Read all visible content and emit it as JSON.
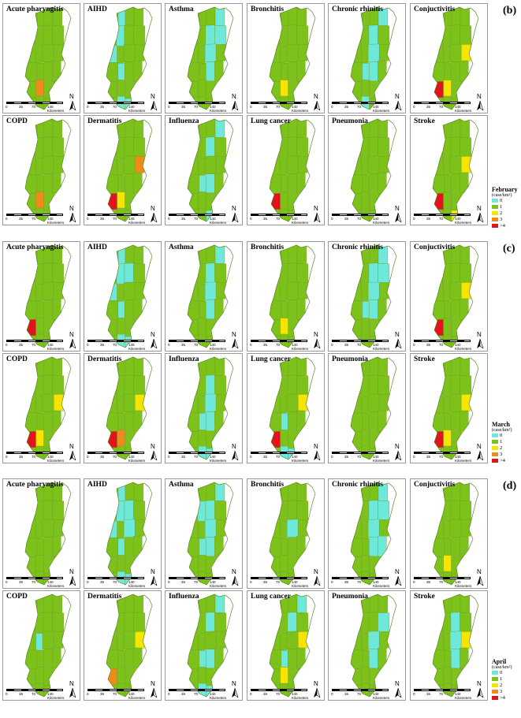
{
  "sections": [
    {
      "label": "(b)",
      "month": "February",
      "panels": [
        {
          "title": "Acute pharyngitis",
          "counties": {
            "17": 3
          }
        },
        {
          "title": "AIHD",
          "counties": {
            "1": 0,
            "5": 0,
            "8": 0,
            "13": 0,
            "19": 0,
            "21": 0,
            "22": 0,
            "24": 0
          }
        },
        {
          "title": "Asthma",
          "counties": {
            "3": 0,
            "6": 0,
            "7": 0,
            "10": 0,
            "14": 0,
            "19": 0
          }
        },
        {
          "title": "Bronchitis",
          "counties": {
            "17": 2
          }
        },
        {
          "title": "Chronic rhinitis",
          "counties": {
            "3": 0,
            "6": 0,
            "10": 0,
            "13": 0,
            "14": 0,
            "19": 0,
            "21": 0,
            "24": 0
          }
        },
        {
          "title": "Conjuctivitis",
          "counties": {
            "11": 2,
            "16": 4,
            "17": 2
          }
        },
        {
          "title": "COPD",
          "counties": {
            "17": 3,
            "19": 2
          }
        },
        {
          "title": "Dermatitis",
          "counties": {
            "11": 3,
            "16": 4,
            "17": 2,
            "19": 2
          }
        },
        {
          "title": "Influenza",
          "counties": {
            "3": 0,
            "6": 0,
            "13": 0,
            "14": 0,
            "19": 0,
            "22": 0
          }
        },
        {
          "title": "Lung cancer",
          "counties": {
            "16": 4,
            "19": 0
          }
        },
        {
          "title": "Pneumonia",
          "counties": {}
        },
        {
          "title": "Stroke",
          "counties": {
            "11": 2,
            "16": 4,
            "19": 2,
            "22": 2
          }
        }
      ]
    },
    {
      "label": "(c)",
      "month": "March",
      "panels": [
        {
          "title": "Acute pharyngitis",
          "counties": {
            "16": 4
          }
        },
        {
          "title": "AIHD",
          "counties": {
            "1": 0,
            "5": 0,
            "6": 0,
            "8": 0,
            "13": 0,
            "19": 0,
            "21": 0,
            "22": 0
          }
        },
        {
          "title": "Asthma",
          "counties": {
            "3": 0,
            "6": 0,
            "10": 0,
            "14": 0,
            "19": 0
          }
        },
        {
          "title": "Bronchitis",
          "counties": {
            "17": 2
          }
        },
        {
          "title": "Chronic rhinitis",
          "counties": {
            "3": 0,
            "6": 0,
            "7": 0,
            "10": 0,
            "13": 0,
            "14": 0
          }
        },
        {
          "title": "Conjuctivitis",
          "counties": {
            "11": 2,
            "16": 4
          }
        },
        {
          "title": "COPD",
          "counties": {
            "11": 2,
            "16": 4,
            "17": 2,
            "19": 2
          }
        },
        {
          "title": "Dermatitis",
          "counties": {
            "11": 2,
            "16": 4,
            "17": 3,
            "19": 2
          }
        },
        {
          "title": "Influenza",
          "counties": {
            "6": 0,
            "10": 0,
            "13": 0,
            "14": 0,
            "19": 0,
            "21": 0,
            "22": 0,
            "23": 0,
            "24": 0
          }
        },
        {
          "title": "Lung cancer",
          "counties": {
            "11": 2,
            "13": 0,
            "16": 4,
            "19": 0,
            "21": 0,
            "22": 0
          }
        },
        {
          "title": "Pneumonia",
          "counties": {}
        },
        {
          "title": "Stroke",
          "counties": {
            "11": 2,
            "16": 4,
            "17": 2,
            "19": 2
          }
        }
      ]
    },
    {
      "label": "(d)",
      "month": "April",
      "panels": [
        {
          "title": "Acute pharyngitis",
          "counties": {}
        },
        {
          "title": "AIHD",
          "counties": {
            "1": 0,
            "5": 0,
            "6": 0,
            "8": 0,
            "10": 0,
            "13": 0,
            "19": 0,
            "21": 0,
            "22": 0,
            "24": 0
          }
        },
        {
          "title": "Asthma",
          "counties": {
            "3": 0,
            "5": 0,
            "6": 0,
            "10": 0,
            "13": 0,
            "14": 0,
            "19": 0
          }
        },
        {
          "title": "Bronchitis",
          "counties": {
            "10": 0
          }
        },
        {
          "title": "Chronic rhinitis",
          "counties": {
            "3": 0,
            "6": 0,
            "7": 0,
            "10": 0,
            "14": 0,
            "15": 0
          }
        },
        {
          "title": "Conjuctivitis",
          "counties": {
            "17": 2
          }
        },
        {
          "title": "COPD",
          "counties": {
            "9": 0,
            "19": 2
          }
        },
        {
          "title": "Dermatitis",
          "counties": {
            "11": 2,
            "16": 3,
            "19": 2
          }
        },
        {
          "title": "Influenza",
          "counties": {
            "3": 0,
            "6": 0,
            "13": 0,
            "14": 0,
            "19": 0,
            "21": 0,
            "22": 0,
            "23": 0,
            "24": 0
          }
        },
        {
          "title": "Lung cancer",
          "counties": {
            "3": 0,
            "6": 0,
            "11": 2,
            "13": 0,
            "17": 2
          }
        },
        {
          "title": "Pneumonia",
          "counties": {
            "7": 0,
            "10": 0,
            "14": 0
          }
        },
        {
          "title": "Stroke",
          "counties": {
            "6": 0,
            "10": 0,
            "11": 2,
            "14": 0
          }
        }
      ]
    }
  ],
  "legend": {
    "unit": "(case/km²)",
    "classes": [
      "0",
      "1",
      "2",
      "3",
      ">4"
    ],
    "colors": [
      "#6ee8d8",
      "#7cc21a",
      "#f7e400",
      "#f08a1c",
      "#e0141a"
    ]
  },
  "scale_labels": [
    "0",
    "35",
    "70",
    "140 Kilometers"
  ],
  "north_label": "N"
}
